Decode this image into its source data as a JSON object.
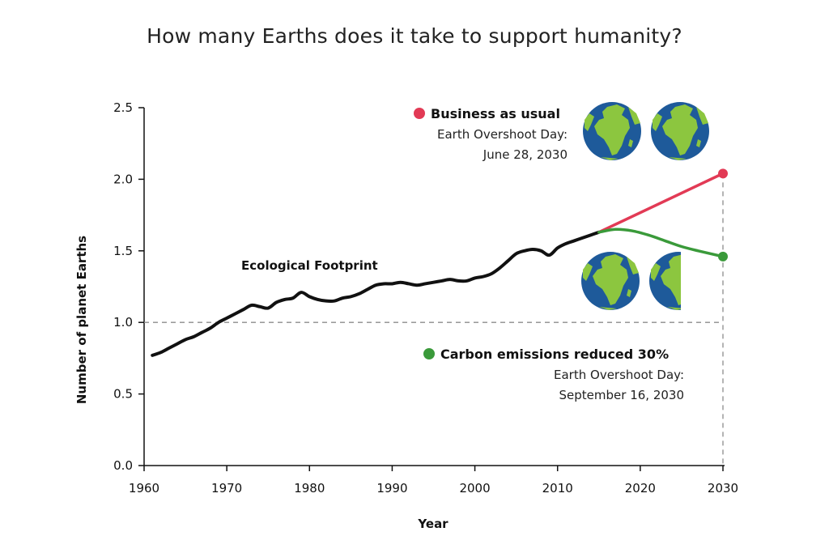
{
  "chart_data": {
    "type": "line",
    "title": "How many Earths does it take to support humanity?",
    "xlabel": "Year",
    "ylabel": "Number of planet Earths",
    "xlim": [
      1960,
      2030
    ],
    "ylim": [
      0,
      2.5
    ],
    "x_ticks": [
      "1960",
      "1970",
      "1980",
      "1990",
      "2000",
      "2010",
      "2020",
      "2030"
    ],
    "y_ticks": [
      "0.0",
      "0.5",
      "1.0",
      "1.5",
      "2.0",
      "2.5"
    ],
    "reference_line": {
      "y": 1.0,
      "style": "dashed"
    },
    "series": [
      {
        "name": "Ecological Footprint",
        "color": "#111111",
        "x": [
          1961,
          1962,
          1963,
          1964,
          1965,
          1966,
          1967,
          1968,
          1969,
          1970,
          1971,
          1972,
          1973,
          1974,
          1975,
          1976,
          1977,
          1978,
          1979,
          1980,
          1981,
          1982,
          1983,
          1984,
          1985,
          1986,
          1987,
          1988,
          1989,
          1990,
          1991,
          1992,
          1993,
          1994,
          1995,
          1996,
          1997,
          1998,
          1999,
          2000,
          2001,
          2002,
          2003,
          2004,
          2005,
          2006,
          2007,
          2008,
          2009,
          2010,
          2011,
          2012,
          2013,
          2014,
          2015
        ],
        "y": [
          0.77,
          0.79,
          0.82,
          0.85,
          0.88,
          0.9,
          0.93,
          0.96,
          1.0,
          1.03,
          1.06,
          1.09,
          1.12,
          1.11,
          1.1,
          1.14,
          1.16,
          1.17,
          1.21,
          1.18,
          1.16,
          1.15,
          1.15,
          1.17,
          1.18,
          1.2,
          1.23,
          1.26,
          1.27,
          1.27,
          1.28,
          1.27,
          1.26,
          1.27,
          1.28,
          1.29,
          1.3,
          1.29,
          1.29,
          1.31,
          1.32,
          1.34,
          1.38,
          1.43,
          1.48,
          1.5,
          1.51,
          1.5,
          1.47,
          1.52,
          1.55,
          1.57,
          1.59,
          1.61,
          1.63
        ]
      },
      {
        "name": "Business as usual",
        "color": "#e23a55",
        "x": [
          2015,
          2030
        ],
        "y": [
          1.63,
          2.04
        ]
      },
      {
        "name": "Carbon emissions reduced 30%",
        "color": "#3a9a3a",
        "x": [
          2015,
          2017,
          2019,
          2021,
          2023,
          2025,
          2027,
          2030
        ],
        "y": [
          1.63,
          1.65,
          1.64,
          1.61,
          1.57,
          1.53,
          1.5,
          1.46
        ]
      }
    ],
    "annotations": [
      {
        "label": "Business as usual",
        "line1": "Earth Overshoot Day:",
        "line2": "June 28, 2030",
        "color": "#e23a55",
        "earths": 2.0
      },
      {
        "label": "Carbon emissions reduced 30%",
        "line1": "Earth Overshoot Day:",
        "line2": "September 16, 2030",
        "color": "#3a9a3a",
        "earths": 1.5
      }
    ],
    "grid": false,
    "legend": "none"
  },
  "colors": {
    "ocean": "#1e5a9a",
    "land": "#8cc63f",
    "axis": "#111111",
    "dashed": "#8c8c8c"
  },
  "icons": [
    "earth-globe-icon"
  ]
}
